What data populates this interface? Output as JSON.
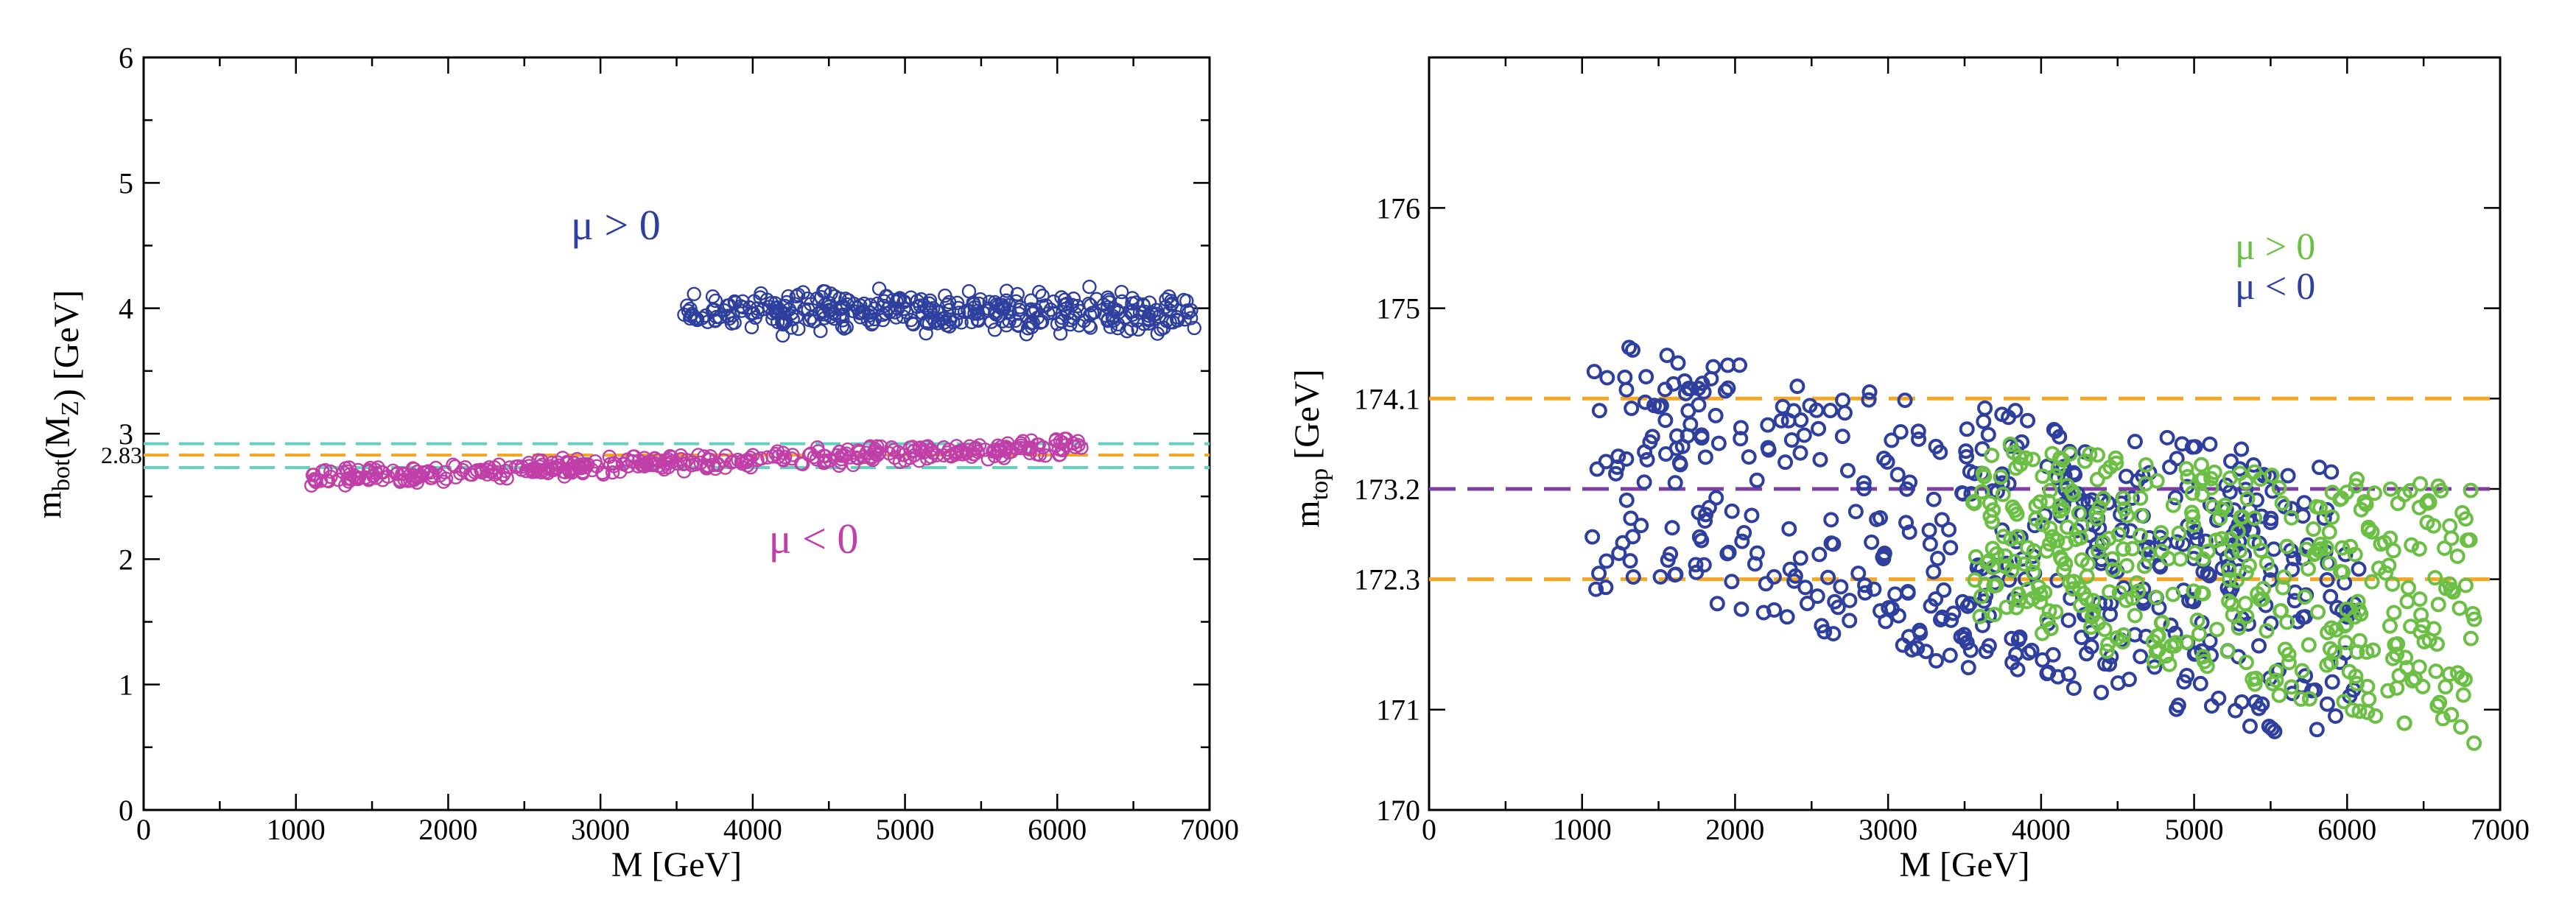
{
  "chart_data": [
    {
      "type": "scatter",
      "title": "",
      "xlabel": "M [GeV]",
      "ylabel": {
        "m": "m",
        "sub": "bot",
        "mid": "(M",
        "sub2": "Z",
        "end": ")  [GeV]"
      },
      "xlim": [
        0,
        7000
      ],
      "ylim": [
        0,
        6
      ],
      "xticks": [
        "0",
        "1000",
        "2000",
        "3000",
        "4000",
        "5000",
        "6000",
        "7000"
      ],
      "yticks": [
        "0",
        "1",
        "2",
        "3",
        "4",
        "5",
        "6"
      ],
      "extra_ytick": "2.83",
      "grid": false,
      "reference_lines": [
        {
          "y": 2.92,
          "color": "#5fd3c0",
          "style": "dashed"
        },
        {
          "y": 2.83,
          "color": "#f5a623",
          "style": "dashed"
        },
        {
          "y": 2.73,
          "color": "#5fd3c0",
          "style": "dashed"
        }
      ],
      "annotations": [
        {
          "text": "μ > 0",
          "x": 3100,
          "y": 4.55,
          "color": "#2e3f9e"
        },
        {
          "text": "μ < 0",
          "x": 4400,
          "y": 2.05,
          "color": "#c03fa8"
        }
      ],
      "series": [
        {
          "label": "μ > 0",
          "color": "#2e3f9e",
          "x_range": [
            3550,
            6900
          ],
          "y_center": 3.97,
          "y_spread": 0.12,
          "count": 380
        },
        {
          "label": "μ < 0",
          "color": "#c03fa8",
          "x_range": [
            1080,
            6200
          ],
          "y_start": 2.64,
          "y_end": 2.9,
          "y_spread": 0.06,
          "count": 420
        }
      ]
    },
    {
      "type": "scatter",
      "title": "",
      "xlabel": "M [GeV]",
      "ylabel": {
        "m": "m",
        "sub": "top",
        "end": " [GeV]"
      },
      "xlim": [
        0,
        7000
      ],
      "ylim": [
        170,
        177.5
      ],
      "xticks": [
        "0",
        "1000",
        "2000",
        "3000",
        "4000",
        "5000",
        "6000",
        "7000"
      ],
      "yticks": [
        "170",
        "171",
        "172.3",
        "173.2",
        "174.1",
        "175",
        "176"
      ],
      "grid": false,
      "reference_lines": [
        {
          "y": 174.1,
          "color": "#f5a623",
          "style": "dashed"
        },
        {
          "y": 173.2,
          "color": "#7a3fa0",
          "style": "dashed"
        },
        {
          "y": 172.3,
          "color": "#f5a623",
          "style": "dashed"
        }
      ],
      "legend": [
        {
          "text": "μ > 0",
          "color": "#6cbf45"
        },
        {
          "text": "μ < 0",
          "color": "#2e3f9e"
        }
      ],
      "series": [
        {
          "label": "μ < 0",
          "color": "#2e3f9e",
          "x_range": [
            1050,
            6100
          ],
          "y_upper_start": 174.7,
          "y_upper_end": 173.4,
          "y_lower_start": 172.2,
          "y_lower_end": 170.6,
          "count": 520
        },
        {
          "label": "μ > 0",
          "color": "#6cbf45",
          "x_range": [
            3550,
            6850
          ],
          "y_upper_start": 173.7,
          "y_upper_end": 173.2,
          "y_lower_start": 171.9,
          "y_lower_end": 170.65,
          "count": 420
        }
      ]
    }
  ]
}
